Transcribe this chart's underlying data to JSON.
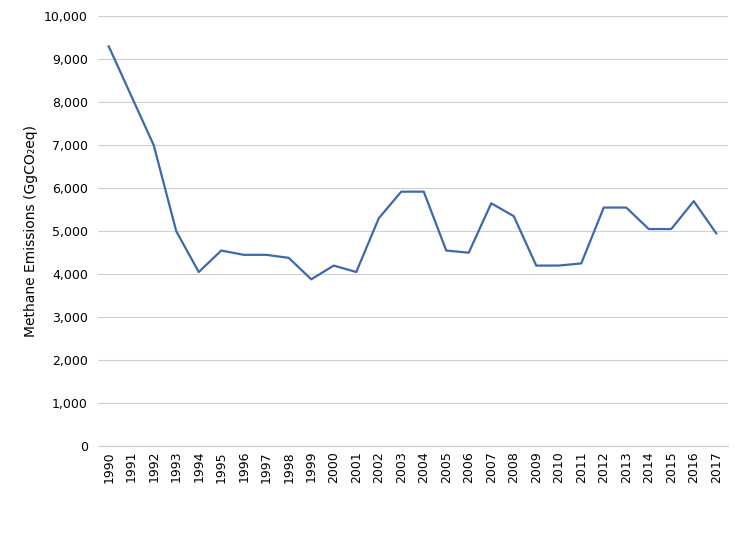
{
  "years": [
    1990,
    1991,
    1992,
    1993,
    1994,
    1995,
    1996,
    1997,
    1998,
    1999,
    2000,
    2001,
    2002,
    2003,
    2004,
    2005,
    2006,
    2007,
    2008,
    2009,
    2010,
    2011,
    2012,
    2013,
    2014,
    2015,
    2016,
    2017
  ],
  "values": [
    9300,
    8150,
    7000,
    5000,
    4050,
    4550,
    4450,
    4450,
    4380,
    3880,
    4200,
    4050,
    5300,
    5920,
    5920,
    4550,
    4500,
    5650,
    5350,
    4200,
    4200,
    4250,
    5550,
    5550,
    5050,
    5050,
    5700,
    4950
  ],
  "line_color": "#3D68B0",
  "line_width": 1.6,
  "ylabel": "Methane Emissions (GgCO₂eq)",
  "ylim": [
    0,
    10000
  ],
  "ytick_step": 1000,
  "background_color": "#ffffff",
  "grid_color": "#d0d0d0",
  "title": ""
}
